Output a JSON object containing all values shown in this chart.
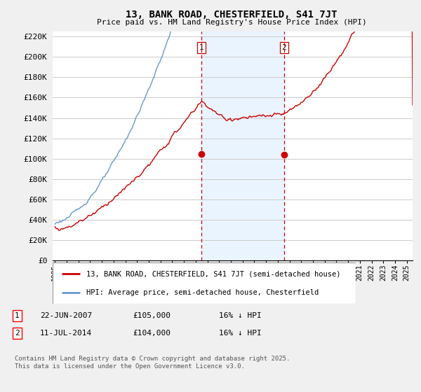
{
  "title": "13, BANK ROAD, CHESTERFIELD, S41 7JT",
  "subtitle": "Price paid vs. HM Land Registry's House Price Index (HPI)",
  "ylabel_ticks": [
    "£0",
    "£20K",
    "£40K",
    "£60K",
    "£80K",
    "£100K",
    "£120K",
    "£140K",
    "£160K",
    "£180K",
    "£200K",
    "£220K"
  ],
  "ytick_values": [
    0,
    20000,
    40000,
    60000,
    80000,
    100000,
    120000,
    140000,
    160000,
    180000,
    200000,
    220000
  ],
  "ylim": [
    0,
    225000
  ],
  "xlim_start": 1994.8,
  "xlim_end": 2025.5,
  "line1_color": "#cc0000",
  "line2_color": "#6699cc",
  "vline_color": "#cc0000",
  "shade_color": "#ddeeff",
  "grid_color": "#cccccc",
  "bg_color": "#f0f0f0",
  "plot_bg_color": "#ffffff",
  "transaction1_x": 2007.47,
  "transaction1_y": 105000,
  "transaction2_x": 2014.53,
  "transaction2_y": 104000,
  "legend_line1": "13, BANK ROAD, CHESTERFIELD, S41 7JT (semi-detached house)",
  "legend_line2": "HPI: Average price, semi-detached house, Chesterfield",
  "ann1_date": "22-JUN-2007",
  "ann1_price": "£105,000",
  "ann1_hpi": "16% ↓ HPI",
  "ann2_date": "11-JUL-2014",
  "ann2_price": "£104,000",
  "ann2_hpi": "16% ↓ HPI",
  "footer": "Contains HM Land Registry data © Crown copyright and database right 2025.\nThis data is licensed under the Open Government Licence v3.0."
}
